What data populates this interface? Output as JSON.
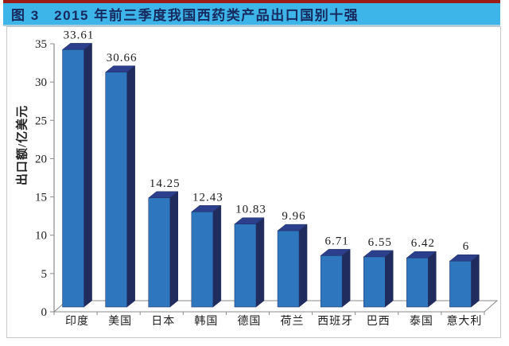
{
  "header": {
    "title": "图 3　2015 年前三季度我国西药类产品出口国别十强",
    "banner_color": "#3db5e8",
    "top_line_color": "#9b1d17",
    "title_text_color": "#17295e"
  },
  "chart_data": {
    "type": "bar",
    "style": "3d-column",
    "title": "",
    "xlabel": "",
    "ylabel": "出口额/亿美元",
    "ylim": [
      0,
      35
    ],
    "yticks": [
      0,
      5,
      10,
      15,
      20,
      25,
      30,
      35
    ],
    "grid": false,
    "legend": "none",
    "categories": [
      "印度",
      "美国",
      "日本",
      "韩国",
      "德国",
      "荷兰",
      "西班牙",
      "巴西",
      "泰国",
      "意大利"
    ],
    "values": [
      33.61,
      30.66,
      14.25,
      12.43,
      10.83,
      9.96,
      6.71,
      6.55,
      6.42,
      6
    ],
    "value_labels": [
      "33.61",
      "30.66",
      "14.25",
      "12.43",
      "10.83",
      "9.96",
      "6.71",
      "6.55",
      "6.42",
      "6"
    ],
    "bar_colors": {
      "front": "#2e76bd",
      "top": "#2b3f8c",
      "side": "#212c5e"
    },
    "axis_color": "#8a8a8a"
  }
}
